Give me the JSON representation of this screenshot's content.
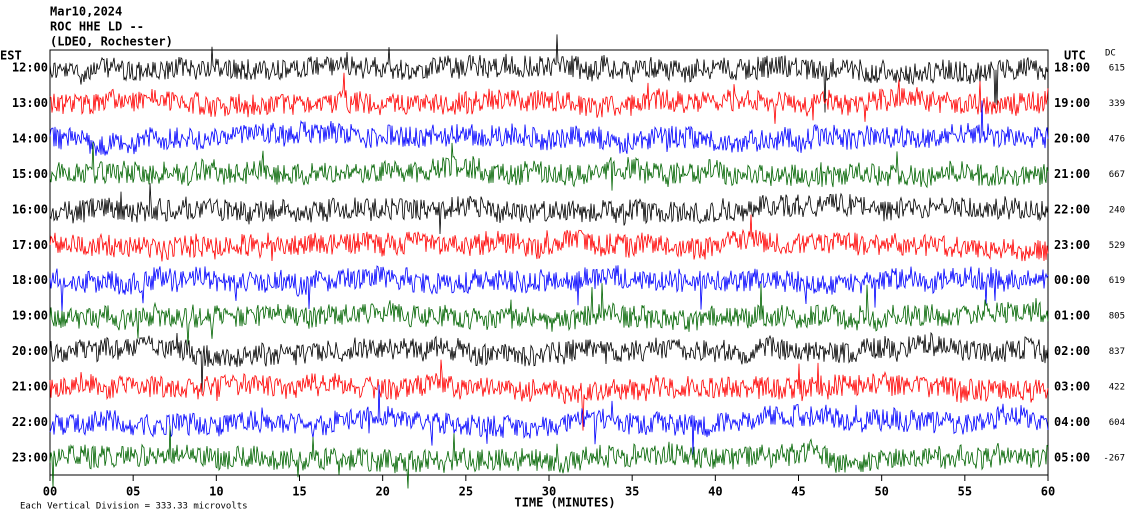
{
  "chart_data": {
    "type": "helicorder",
    "title_lines": [
      "Mar10,2024",
      "ROC HHE LD --",
      "(LDEO, Rochester)"
    ],
    "left_axis_label": "EST",
    "right_axis_label": "UTC",
    "dc_label": "DC",
    "x_label": "TIME (MINUTES)",
    "footer": "Each Vertical Division =  333.33 microvolts",
    "xlim": [
      0,
      60
    ],
    "xticks": [
      {
        "value": 0,
        "label": "00"
      },
      {
        "value": 5,
        "label": "05"
      },
      10,
      15,
      20,
      25,
      30,
      35,
      40,
      45,
      50,
      55,
      60
    ],
    "colors": [
      "#000000",
      "#ff0000",
      "#0000ff",
      "#006400"
    ],
    "rows": [
      {
        "est": "12:00",
        "utc": "18:00",
        "dc": 615
      },
      {
        "est": "13:00",
        "utc": "19:00",
        "dc": 339
      },
      {
        "est": "14:00",
        "utc": "20:00",
        "dc": 476
      },
      {
        "est": "15:00",
        "utc": "21:00",
        "dc": 667
      },
      {
        "est": "16:00",
        "utc": "22:00",
        "dc": 240
      },
      {
        "est": "17:00",
        "utc": "23:00",
        "dc": 529
      },
      {
        "est": "18:00",
        "utc": "00:00",
        "dc": 619
      },
      {
        "est": "19:00",
        "utc": "01:00",
        "dc": 805
      },
      {
        "est": "20:00",
        "utc": "02:00",
        "dc": 837
      },
      {
        "est": "21:00",
        "utc": "03:00",
        "dc": 422
      },
      {
        "est": "22:00",
        "utc": "04:00",
        "dc": 604
      },
      {
        "est": "23:00",
        "utc": "05:00",
        "dc": -267
      }
    ]
  }
}
